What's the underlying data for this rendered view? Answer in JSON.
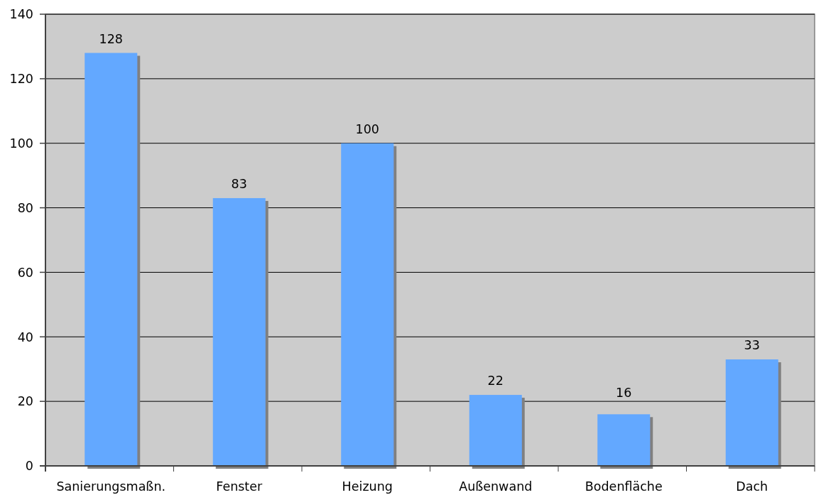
{
  "chart_data": {
    "type": "bar",
    "categories": [
      "Sanierungsmaßn.",
      "Fenster",
      "Heizung",
      "Außenwand",
      "Bodenfläche",
      "Dach"
    ],
    "values": [
      128,
      83,
      100,
      22,
      16,
      33
    ],
    "color": "#63a8ff",
    "ylim": [
      0,
      140
    ],
    "yticks": [
      0,
      20,
      40,
      60,
      80,
      100,
      120,
      140
    ],
    "grid": "y",
    "data_labels": true
  }
}
